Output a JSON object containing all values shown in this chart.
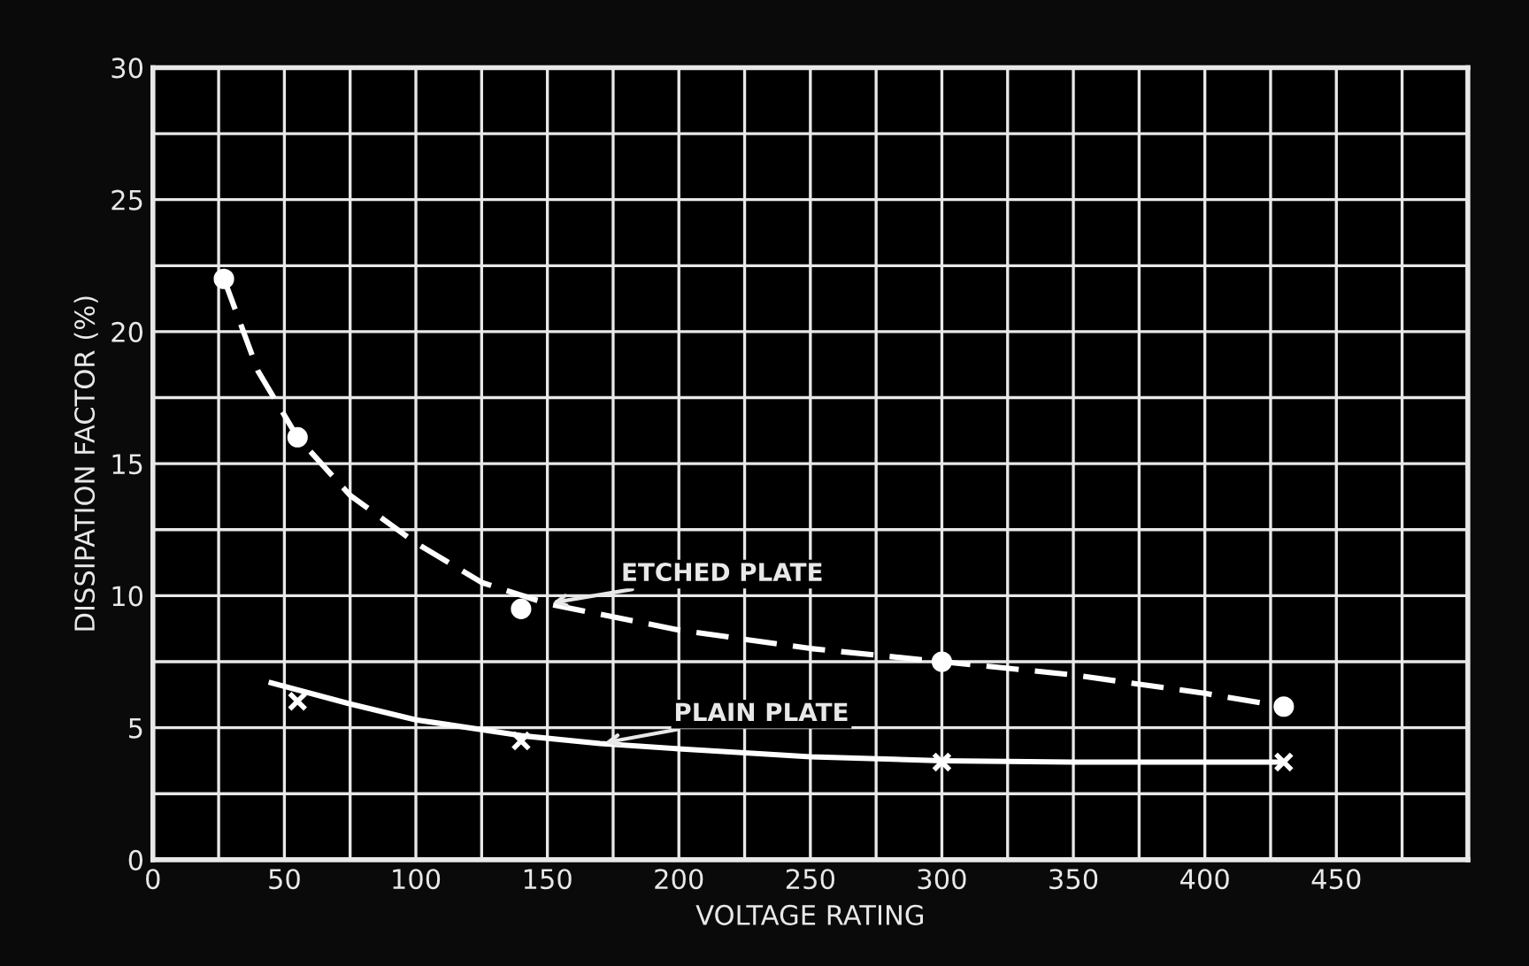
{
  "chart_data": {
    "type": "line",
    "xlabel": "VOLTAGE RATING",
    "ylabel": "DISSIPATION FACTOR (%)",
    "xlim": [
      0,
      500
    ],
    "ylim": [
      0,
      30
    ],
    "xticks": [
      0,
      {
        "value": 25,
        "label": null
      },
      50,
      {
        "value": 75,
        "label": null
      },
      100,
      {
        "value": 125,
        "label": null
      },
      150,
      {
        "value": 175,
        "label": null
      },
      200,
      {
        "value": 225,
        "label": null
      },
      250,
      {
        "value": 275,
        "label": null
      },
      300,
      {
        "value": 325,
        "label": null
      },
      350,
      {
        "value": 375,
        "label": null
      },
      400,
      {
        "value": 425,
        "label": null
      },
      450,
      {
        "value": 475,
        "label": null
      },
      {
        "value": 500,
        "label": null
      }
    ],
    "yticks": [
      0,
      {
        "value": 2.5,
        "label": null
      },
      5,
      {
        "value": 7.5,
        "label": null
      },
      10,
      {
        "value": 12.5,
        "label": null
      },
      15,
      {
        "value": 17.5,
        "label": null
      },
      20,
      {
        "value": 22.5,
        "label": null
      },
      25,
      {
        "value": 27.5,
        "label": null
      },
      30
    ],
    "grid": true,
    "legend": false,
    "series": [
      {
        "line_style": "dashed",
        "marker": "none",
        "color": "#ffffff",
        "x": [
          27,
          40,
          55,
          75,
          100,
          125,
          150,
          200,
          250,
          300,
          350,
          400,
          430
        ],
        "values": [
          22,
          18.5,
          16,
          13.8,
          12,
          10.5,
          9.7,
          8.7,
          8,
          7.5,
          7,
          6.3,
          5.8
        ]
      },
      {
        "type": "scatter",
        "marker": "circle",
        "color": "#ffffff",
        "x": [
          27,
          55,
          140,
          300,
          430
        ],
        "values": [
          22,
          16,
          9.5,
          7.5,
          5.8
        ]
      },
      {
        "line_style": "solid",
        "marker": "none",
        "color": "#ffffff",
        "x": [
          45,
          75,
          100,
          140,
          170,
          200,
          250,
          300,
          350,
          430
        ],
        "values": [
          6.7,
          5.9,
          5.3,
          4.7,
          4.4,
          4.2,
          3.9,
          3.75,
          3.7,
          3.7
        ]
      },
      {
        "type": "scatter",
        "marker": "cross",
        "color": "#ffffff",
        "x": [
          55,
          140,
          300,
          430
        ],
        "values": [
          6,
          4.5,
          3.7,
          3.7
        ]
      }
    ],
    "annotations": [
      {
        "text": "ETCHED PLATE",
        "x": 150,
        "y": 9.7
      },
      {
        "text": "PLAIN PLATE",
        "x": 170,
        "y": 4.4
      }
    ]
  }
}
